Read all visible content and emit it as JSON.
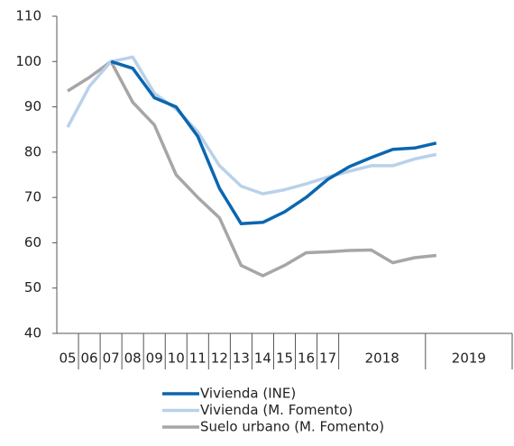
{
  "chart_data": {
    "type": "line",
    "categories": [
      "05",
      "06",
      "07",
      "08",
      "09",
      "10",
      "11",
      "12",
      "13",
      "14",
      "15",
      "16",
      "17",
      null,
      null,
      null,
      null,
      null,
      null,
      null,
      null
    ],
    "year_groups": [
      "2018",
      "2019"
    ],
    "series": [
      {
        "name": "Vivienda (INE)",
        "color": "#0a66b0",
        "values": [
          null,
          null,
          100,
          98.5,
          92,
          90,
          83.5,
          72,
          64.2,
          64.5,
          66.8,
          70,
          74,
          76.8,
          78.8,
          80.6,
          80.9,
          82,
          null,
          null,
          null
        ]
      },
      {
        "name": "Vivienda (M. Fomento)",
        "color": "#b9d1ea",
        "values": [
          85.5,
          94.5,
          100,
          101,
          93,
          89.5,
          84.5,
          77,
          72.5,
          70.8,
          71.7,
          73,
          74.5,
          75.8,
          77,
          77,
          78.5,
          79.5,
          null,
          null,
          null
        ]
      },
      {
        "name": "Suelo urbano (M. Fomento)",
        "color": "#a6a6a6",
        "values": [
          93.5,
          96.5,
          100,
          91,
          86,
          75,
          70,
          65.5,
          55,
          52.7,
          55,
          57.8,
          58,
          58.3,
          58.4,
          55.6,
          56.7,
          57.2,
          null,
          null,
          null
        ]
      }
    ],
    "ylim": [
      40,
      110
    ],
    "yticks": [
      40,
      50,
      60,
      70,
      80,
      90,
      100,
      110
    ],
    "grid": false
  }
}
